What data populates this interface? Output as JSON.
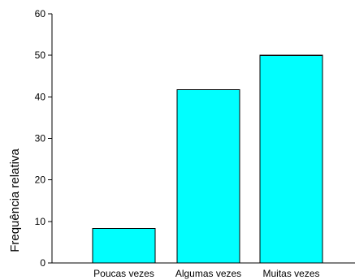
{
  "chart_data": {
    "type": "bar",
    "categories": [
      "Poucas vezes",
      "Algumas vezes",
      "Muitas vezes"
    ],
    "values": [
      8.3,
      41.7,
      50.0
    ],
    "ylabel": "Frequência relativa",
    "ylim": [
      0,
      60
    ],
    "yticks": [
      0,
      10,
      20,
      30,
      40,
      50,
      60
    ],
    "bar_color": "#00FFFF",
    "grid": false,
    "legend": "none"
  }
}
